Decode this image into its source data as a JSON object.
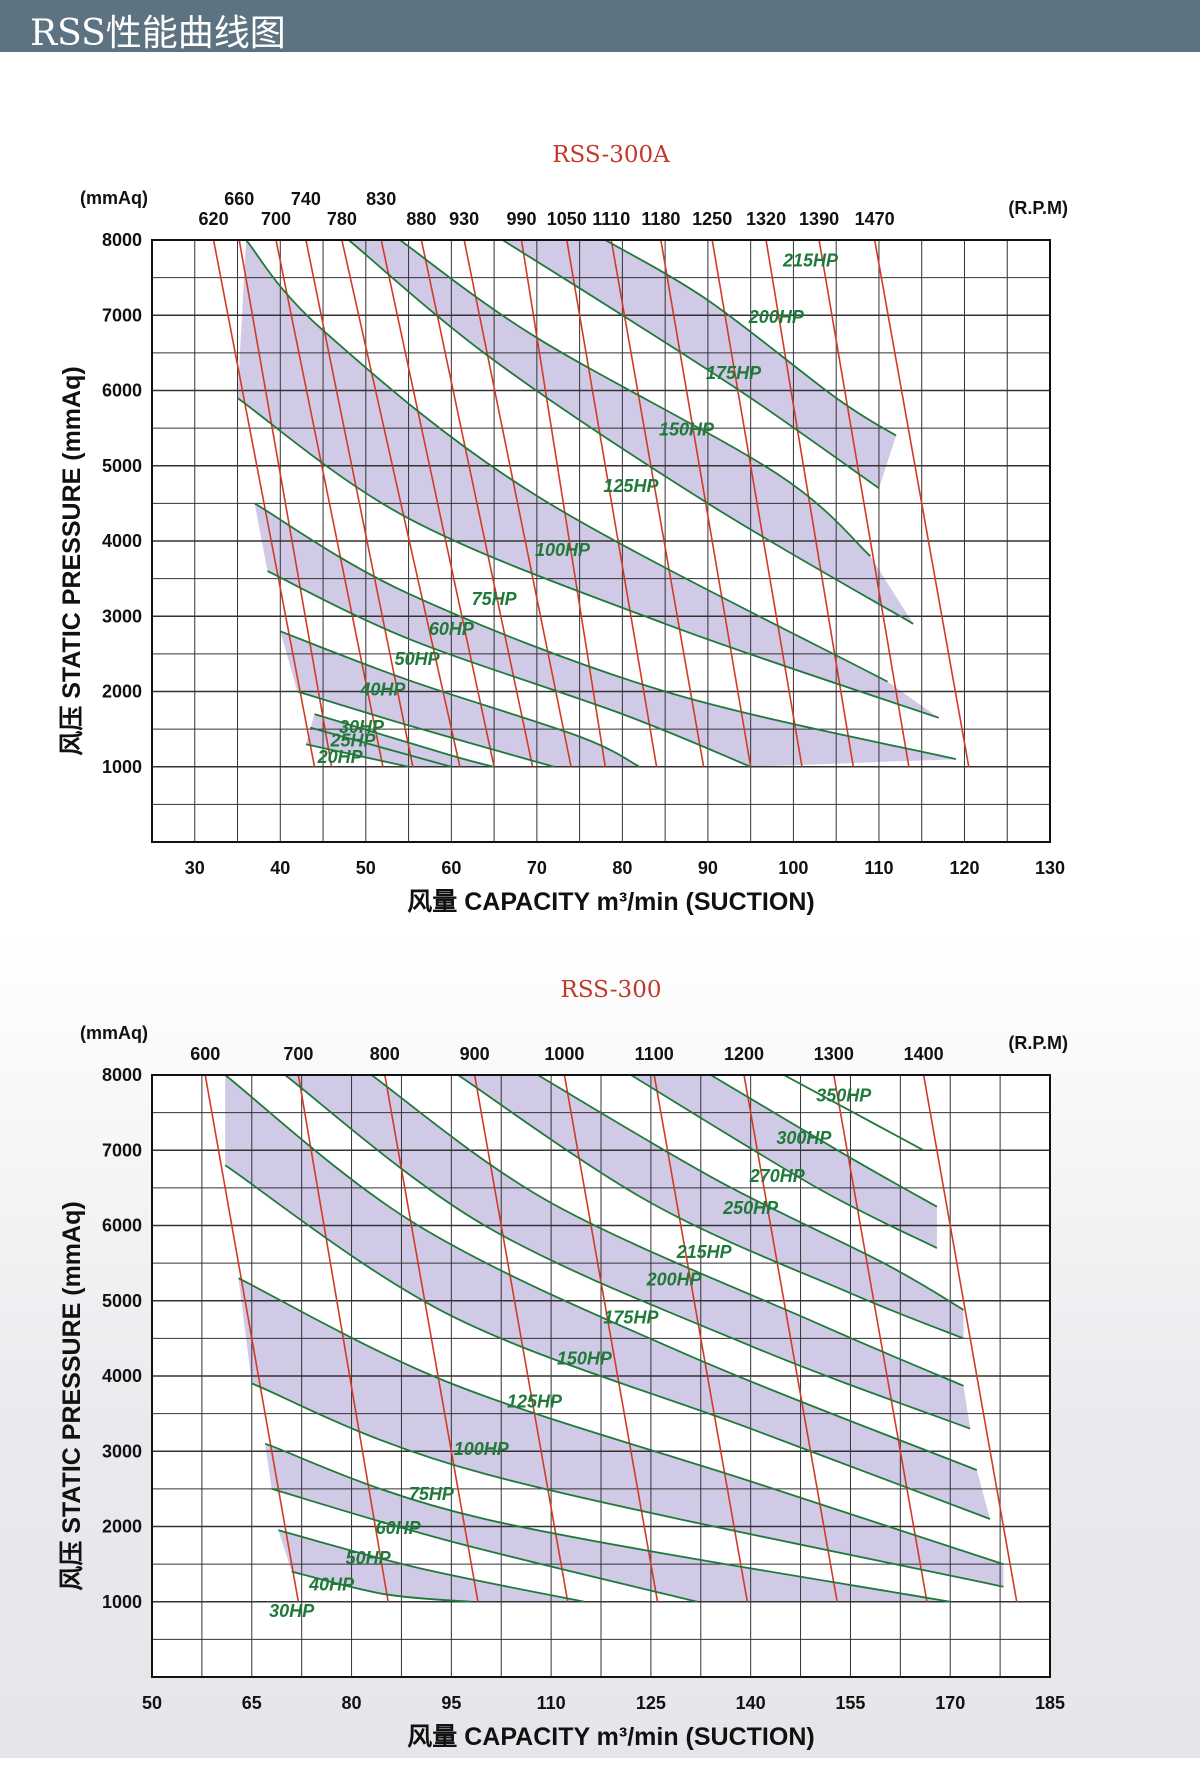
{
  "header": {
    "title": "RSS性能曲线图"
  },
  "colors": {
    "band": "#cbc4e4",
    "rpm_line": "#d23a26",
    "hp_line": "#1f7a3a",
    "grid": "#333333",
    "header_bg": "#5d7382"
  },
  "chart_data": [
    {
      "type": "line",
      "title": "RSS-300A",
      "ylabel": "风压  STATIC PRESSURE  (mmAq)",
      "xlabel_cn": "风量",
      "xlabel": "CAPACITY m³/min (SUCTION)",
      "y_unit": "(mmAq)",
      "rpm_unit": "(R.P.M)",
      "xlim": [
        25,
        130
      ],
      "ylim": [
        0,
        8000
      ],
      "x_ticks": [
        30,
        40,
        50,
        60,
        70,
        80,
        90,
        100,
        110,
        120,
        130
      ],
      "x_tick_labels": [
        "30",
        "40",
        "50",
        "60",
        "70",
        "80",
        "90",
        "100",
        "110",
        "120",
        "130"
      ],
      "y_ticks": [
        1000,
        2000,
        3000,
        4000,
        5000,
        6000,
        7000,
        8000
      ],
      "y_tick_labels": [
        "1000",
        "2000",
        "3000",
        "4000",
        "5000",
        "6000",
        "7000",
        "8000"
      ],
      "rpm_lines": [
        {
          "rpm": "620",
          "points": [
            [
              32.2,
              8000
            ],
            [
              44,
              1000
            ]
          ]
        },
        {
          "rpm": "660",
          "points": [
            [
              35.2,
              8000
            ],
            [
              46,
              1000
            ]
          ]
        },
        {
          "rpm": "700",
          "points": [
            [
              39.5,
              8000
            ],
            [
              52,
              1000
            ]
          ]
        },
        {
          "rpm": "740",
          "points": [
            [
              43,
              8000
            ],
            [
              55.5,
              1000
            ]
          ]
        },
        {
          "rpm": "780",
          "points": [
            [
              47.2,
              8000
            ],
            [
              61,
              1000
            ]
          ]
        },
        {
          "rpm": "830",
          "points": [
            [
              51.8,
              8000
            ],
            [
              65,
              1000
            ]
          ]
        },
        {
          "rpm": "880",
          "points": [
            [
              56.5,
              8000
            ],
            [
              69.5,
              1000
            ]
          ]
        },
        {
          "rpm": "930",
          "points": [
            [
              61.5,
              8000
            ],
            [
              74,
              1000
            ]
          ]
        },
        {
          "rpm": "990",
          "points": [
            [
              68.2,
              8000
            ],
            [
              78,
              1000
            ]
          ]
        },
        {
          "rpm": "1050",
          "points": [
            [
              73.5,
              8000
            ],
            [
              84,
              1000
            ]
          ]
        },
        {
          "rpm": "1110",
          "points": [
            [
              78.7,
              8000
            ],
            [
              89.5,
              1000
            ]
          ]
        },
        {
          "rpm": "1180",
          "points": [
            [
              84.5,
              8000
            ],
            [
              95,
              1000
            ]
          ]
        },
        {
          "rpm": "1250",
          "points": [
            [
              90.5,
              8000
            ],
            [
              101,
              1000
            ]
          ]
        },
        {
          "rpm": "1320",
          "points": [
            [
              96.8,
              8000
            ],
            [
              107,
              1000
            ]
          ]
        },
        {
          "rpm": "1390",
          "points": [
            [
              103,
              8000
            ],
            [
              113.5,
              1000
            ]
          ]
        },
        {
          "rpm": "1470",
          "points": [
            [
              109.5,
              8000
            ],
            [
              120.5,
              1000
            ]
          ]
        }
      ],
      "hp_curves": [
        {
          "hp": "20HP",
          "points": [
            [
              43,
              1300
            ],
            [
              55,
              1000
            ]
          ]
        },
        {
          "hp": "25HP",
          "points": [
            [
              43.5,
              1520
            ],
            [
              60,
              1000
            ]
          ]
        },
        {
          "hp": "30HP",
          "points": [
            [
              44,
              1700
            ],
            [
              60,
              1150
            ],
            [
              65,
              1000
            ]
          ]
        },
        {
          "hp": "40HP",
          "points": [
            [
              42,
              2000
            ],
            [
              55,
              1550
            ],
            [
              72,
              1000
            ]
          ]
        },
        {
          "hp": "50HP",
          "points": [
            [
              40,
              2800
            ],
            [
              55,
              2150
            ],
            [
              75,
              1400
            ],
            [
              82,
              1000
            ]
          ]
        },
        {
          "hp": "60HP",
          "points": [
            [
              38.5,
              3600
            ],
            [
              55,
              2700
            ],
            [
              80,
              1700
            ],
            [
              95,
              1000
            ]
          ]
        },
        {
          "hp": "75HP",
          "points": [
            [
              37,
              4500
            ],
            [
              55,
              3300
            ],
            [
              85,
              2000
            ],
            [
              119,
              1100
            ]
          ]
        },
        {
          "hp": "100HP",
          "points": [
            [
              35,
              5900
            ],
            [
              55,
              4300
            ],
            [
              85,
              2900
            ],
            [
              117,
              1650
            ]
          ]
        },
        {
          "hp": "125HP",
          "points": [
            [
              36,
              8000
            ],
            [
              45,
              6800
            ],
            [
              70,
              4600
            ],
            [
              111,
              2130
            ]
          ]
        },
        {
          "hp": "150HP",
          "points": [
            [
              48,
              8000
            ],
            [
              65,
              6400
            ],
            [
              90,
              4500
            ],
            [
              114,
              2900
            ]
          ]
        },
        {
          "hp": "175HP",
          "points": [
            [
              54,
              8000
            ],
            [
              70,
              6700
            ],
            [
              98,
              4900
            ],
            [
              109,
              3800
            ]
          ]
        },
        {
          "hp": "200HP",
          "points": [
            [
              66,
              8000
            ],
            [
              80,
              7000
            ],
            [
              95,
              5900
            ],
            [
              110,
              4700
            ]
          ]
        },
        {
          "hp": "215HP",
          "points": [
            [
              78,
              8000
            ],
            [
              90,
              7200
            ],
            [
              105,
              5900
            ],
            [
              112,
              5400
            ]
          ]
        }
      ],
      "hp_labels": [
        {
          "text": "215HP",
          "x": 102,
          "y": 7650
        },
        {
          "text": "200HP",
          "x": 98,
          "y": 6900
        },
        {
          "text": "175HP",
          "x": 93,
          "y": 6150
        },
        {
          "text": "150HP",
          "x": 87.5,
          "y": 5400
        },
        {
          "text": "125HP",
          "x": 81,
          "y": 4650
        },
        {
          "text": "100HP",
          "x": 73,
          "y": 3800
        },
        {
          "text": "75HP",
          "x": 65,
          "y": 3150
        },
        {
          "text": "60HP",
          "x": 60,
          "y": 2750
        },
        {
          "text": "50HP",
          "x": 56,
          "y": 2350
        },
        {
          "text": "40HP",
          "x": 52,
          "y": 1950
        },
        {
          "text": "30HP",
          "x": 49.5,
          "y": 1450
        },
        {
          "text": "25HP",
          "x": 48.5,
          "y": 1270
        },
        {
          "text": "20HP",
          "x": 47,
          "y": 1050
        }
      ],
      "bands": [
        {
          "upper": "20HP",
          "lower": "30HP"
        },
        {
          "upper": "40HP",
          "lower": "50HP"
        },
        {
          "upper": "60HP",
          "lower": "75HP"
        },
        {
          "upper": "100HP",
          "lower": "125HP"
        },
        {
          "upper": "150HP",
          "lower": "175HP"
        },
        {
          "upper": "200HP",
          "lower": "215HP"
        }
      ]
    },
    {
      "type": "line",
      "title": "RSS-300",
      "ylabel": "风压  STATIC PRESSURE  (mmAq)",
      "xlabel_cn": "风量",
      "xlabel": "CAPACITY m³/min (SUCTION)",
      "y_unit": "(mmAq)",
      "rpm_unit": "(R.P.M)",
      "xlim": [
        50,
        185
      ],
      "ylim": [
        0,
        8000
      ],
      "x_ticks": [
        50,
        65,
        80,
        95,
        110,
        125,
        140,
        155,
        170,
        185
      ],
      "x_tick_labels": [
        "50",
        "65",
        "80",
        "95",
        "110",
        "125",
        "140",
        "155",
        "170",
        "185"
      ],
      "y_ticks": [
        1000,
        2000,
        3000,
        4000,
        5000,
        6000,
        7000,
        8000
      ],
      "y_tick_labels": [
        "1000",
        "2000",
        "3000",
        "4000",
        "5000",
        "6000",
        "7000",
        "8000"
      ],
      "rpm_lines": [
        {
          "rpm": "600",
          "points": [
            [
              58,
              8000
            ],
            [
              72,
              1000
            ]
          ]
        },
        {
          "rpm": "700",
          "points": [
            [
              72,
              8000
            ],
            [
              85.5,
              1000
            ]
          ]
        },
        {
          "rpm": "800",
          "points": [
            [
              85,
              8000
            ],
            [
              99,
              1000
            ]
          ]
        },
        {
          "rpm": "900",
          "points": [
            [
              98.5,
              8000
            ],
            [
              112.5,
              1000
            ]
          ]
        },
        {
          "rpm": "1000",
          "points": [
            [
              112,
              8000
            ],
            [
              126,
              1000
            ]
          ]
        },
        {
          "rpm": "1100",
          "points": [
            [
              125.5,
              8000
            ],
            [
              139.5,
              1000
            ]
          ]
        },
        {
          "rpm": "1200",
          "points": [
            [
              139,
              8000
            ],
            [
              153,
              1000
            ]
          ]
        },
        {
          "rpm": "1300",
          "points": [
            [
              152.5,
              8000
            ],
            [
              166.5,
              1000
            ]
          ]
        },
        {
          "rpm": "1400",
          "points": [
            [
              166,
              8000
            ],
            [
              180,
              1000
            ]
          ]
        }
      ],
      "hp_curves": [
        {
          "hp": "30HP",
          "points": [
            [
              71,
              1400
            ],
            [
              85,
              1100
            ],
            [
              98,
              1000
            ]
          ]
        },
        {
          "hp": "40HP",
          "points": [
            [
              69,
              1950
            ],
            [
              90,
              1450
            ],
            [
              115,
              1000
            ]
          ]
        },
        {
          "hp": "50HP",
          "points": [
            [
              68,
              2500
            ],
            [
              95,
              1800
            ],
            [
              132,
              1000
            ]
          ]
        },
        {
          "hp": "60HP",
          "points": [
            [
              67,
              3100
            ],
            [
              100,
              2100
            ],
            [
              170,
              1000
            ]
          ]
        },
        {
          "hp": "75HP",
          "points": [
            [
              65,
              3900
            ],
            [
              100,
              2700
            ],
            [
              178,
              1200
            ]
          ]
        },
        {
          "hp": "100HP",
          "points": [
            [
              63,
              5300
            ],
            [
              95,
              3900
            ],
            [
              140,
              2600
            ],
            [
              178,
              1500
            ]
          ]
        },
        {
          "hp": "125HP",
          "points": [
            [
              61,
              6800
            ],
            [
              95,
              4800
            ],
            [
              140,
              3300
            ],
            [
              176,
              2100
            ]
          ]
        },
        {
          "hp": "150HP",
          "points": [
            [
              61,
              8000
            ],
            [
              90,
              6000
            ],
            [
              130,
              4300
            ],
            [
              174,
              2750
            ]
          ]
        },
        {
          "hp": "175HP",
          "points": [
            [
              70,
              8000
            ],
            [
              100,
              6000
            ],
            [
              140,
              4400
            ],
            [
              173,
              3300
            ]
          ]
        },
        {
          "hp": "200HP",
          "points": [
            [
              83,
              8000
            ],
            [
              110,
              6300
            ],
            [
              150,
              4700
            ],
            [
              172,
              3870
            ]
          ]
        },
        {
          "hp": "215HP",
          "points": [
            [
              96,
              8000
            ],
            [
              125,
              6300
            ],
            [
              155,
              5100
            ],
            [
              172,
              4500
            ]
          ]
        },
        {
          "hp": "250HP",
          "points": [
            [
              108,
              8000
            ],
            [
              135,
              6600
            ],
            [
              160,
              5500
            ],
            [
              172,
              4880
            ]
          ]
        },
        {
          "hp": "270HP",
          "points": [
            [
              122,
              8000
            ],
            [
              150,
              6500
            ],
            [
              168,
              5700
            ]
          ]
        },
        {
          "hp": "300HP",
          "points": [
            [
              134,
              8000
            ],
            [
              155,
              6900
            ],
            [
              168,
              6250
            ]
          ]
        },
        {
          "hp": "350HP",
          "points": [
            [
              145,
              8000
            ],
            [
              166,
              7000
            ]
          ]
        }
      ],
      "hp_labels": [
        {
          "text": "350HP",
          "x": 154,
          "y": 7650
        },
        {
          "text": "300HP",
          "x": 148,
          "y": 7080
        },
        {
          "text": "270HP",
          "x": 144,
          "y": 6580
        },
        {
          "text": "250HP",
          "x": 140,
          "y": 6150
        },
        {
          "text": "215HP",
          "x": 133,
          "y": 5570
        },
        {
          "text": "200HP",
          "x": 128.5,
          "y": 5200
        },
        {
          "text": "175HP",
          "x": 122,
          "y": 4700
        },
        {
          "text": "150HP",
          "x": 115,
          "y": 4150
        },
        {
          "text": "125HP",
          "x": 107.5,
          "y": 3580
        },
        {
          "text": "100HP",
          "x": 99.5,
          "y": 2950
        },
        {
          "text": "75HP",
          "x": 92,
          "y": 2350
        },
        {
          "text": "60HP",
          "x": 87,
          "y": 1900
        },
        {
          "text": "50HP",
          "x": 82.5,
          "y": 1500
        },
        {
          "text": "40HP",
          "x": 77,
          "y": 1150
        },
        {
          "text": "30HP",
          "x": 71,
          "y": 800
        }
      ],
      "bands": [
        {
          "upper": "30HP",
          "lower": "40HP"
        },
        {
          "upper": "50HP",
          "lower": "60HP"
        },
        {
          "upper": "75HP",
          "lower": "100HP"
        },
        {
          "upper": "125HP",
          "lower": "150HP"
        },
        {
          "upper": "175HP",
          "lower": "200HP"
        },
        {
          "upper": "215HP",
          "lower": "250HP"
        },
        {
          "upper": "270HP",
          "lower": "300HP"
        }
      ]
    }
  ]
}
